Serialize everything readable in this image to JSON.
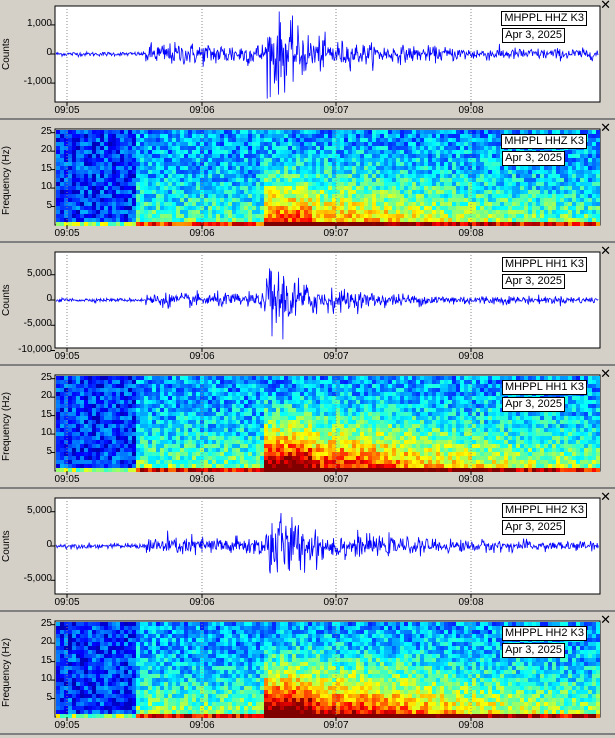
{
  "panels": [
    {
      "kind": "wave",
      "station": "MHPPL HHZ K3",
      "date": "Apr 3, 2025",
      "ylabel": "Counts",
      "yticks": [
        "1,000",
        "0",
        "-1,000"
      ],
      "ytick_values": [
        1000,
        0,
        -1000
      ],
      "ymax": 1650,
      "env": [
        80,
        420,
        1650,
        380
      ]
    },
    {
      "kind": "spec",
      "station": "MHPPL HHZ K3",
      "date": "Apr 3, 2025",
      "ylabel": "Frequency (Hz)",
      "yticks": [
        "25",
        "20",
        "15",
        "10",
        "5"
      ],
      "intensity": 0.55
    },
    {
      "kind": "wave",
      "station": "MHPPL HH1 K3",
      "date": "Apr 3, 2025",
      "ylabel": "Counts",
      "yticks": [
        "5,000",
        "0",
        "-5,000",
        "-10,000"
      ],
      "ytick_values": [
        5000,
        0,
        -5000,
        -10000
      ],
      "ymax": 9500,
      "env": [
        400,
        1500,
        9000,
        1800
      ]
    },
    {
      "kind": "spec",
      "station": "MHPPL HH1 K3",
      "date": "Apr 3, 2025",
      "ylabel": "Frequency (Hz)",
      "yticks": [
        "25",
        "20",
        "15",
        "10",
        "5"
      ],
      "intensity": 0.8
    },
    {
      "kind": "wave",
      "station": "MHPPL HH2 K3",
      "date": "Apr 3, 2025",
      "ylabel": "Counts",
      "yticks": [
        "5,000",
        "0",
        "-5,000"
      ],
      "ytick_values": [
        5000,
        0,
        -5000
      ],
      "ymax": 7000,
      "env": [
        400,
        1500,
        6200,
        1800
      ]
    },
    {
      "kind": "spec",
      "station": "MHPPL HH2 K3",
      "date": "Apr 3, 2025",
      "ylabel": "Frequency (Hz)",
      "yticks": [
        "25",
        "20",
        "15",
        "10",
        "5"
      ],
      "intensity": 0.85
    }
  ],
  "xticks": [
    "09:05",
    "09:06",
    "09:07",
    "09:08"
  ],
  "colors": {
    "trace": "#0000ff",
    "background": "#d4d0c8",
    "plot": "#ffffff"
  },
  "close_icon": "close-icon"
}
